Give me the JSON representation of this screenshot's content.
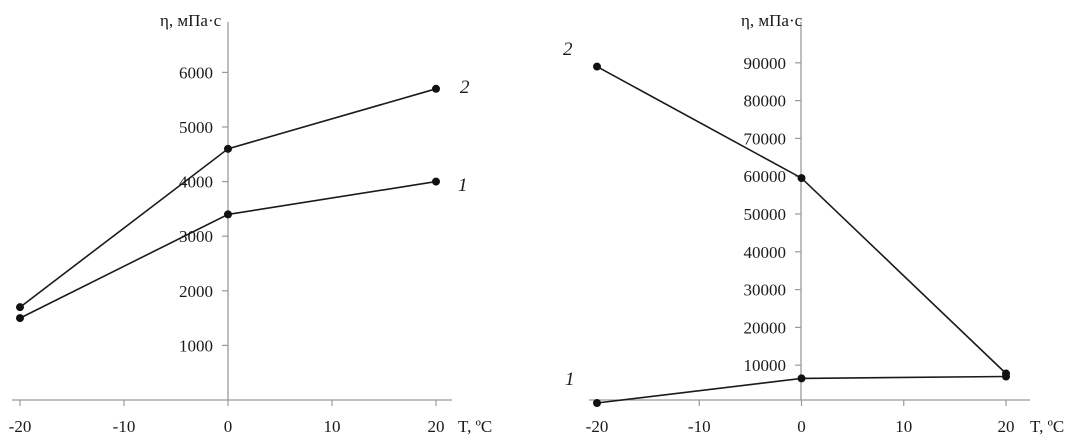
{
  "chart_data": [
    {
      "type": "line",
      "xlabel": "T, ºC",
      "ylabel": "η, мПа·с",
      "x_ticks": [
        "-20",
        "-10",
        "0",
        "10",
        "20"
      ],
      "y_ticks": [
        "1000",
        "2000",
        "3000",
        "4000",
        "5000",
        "6000"
      ],
      "xlim": [
        -20,
        20
      ],
      "ylim": [
        0,
        6500
      ],
      "grid": false,
      "series": [
        {
          "name": "1",
          "x": [
            -20,
            0,
            20
          ],
          "values": [
            1500,
            3400,
            4000
          ]
        },
        {
          "name": "2",
          "x": [
            -20,
            0,
            20
          ],
          "values": [
            1700,
            4600,
            5700
          ]
        }
      ]
    },
    {
      "type": "line",
      "xlabel": "T, ºC",
      "ylabel": "η, мПа·с",
      "x_ticks": [
        "-20",
        "-10",
        "0",
        "10",
        "20"
      ],
      "y_ticks": [
        "10000",
        "20000",
        "30000",
        "40000",
        "50000",
        "60000",
        "70000",
        "80000",
        "90000"
      ],
      "xlim": [
        -20,
        20
      ],
      "ylim": [
        0,
        97000
      ],
      "grid": false,
      "series": [
        {
          "name": "1",
          "x": [
            -20,
            0,
            20
          ],
          "values": [
            0,
            6500,
            7000
          ]
        },
        {
          "name": "2",
          "x": [
            -20,
            0,
            20
          ],
          "values": [
            89000,
            59500,
            7800
          ]
        }
      ]
    }
  ]
}
